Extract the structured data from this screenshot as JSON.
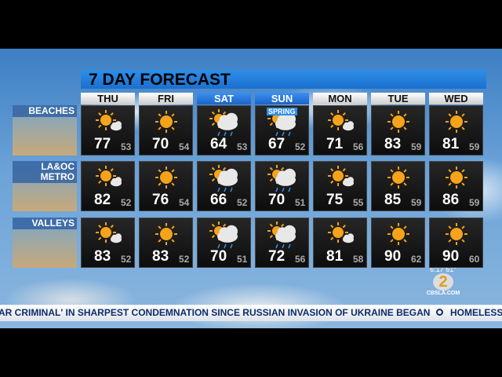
{
  "header": {
    "title": "7 DAY FORECAST"
  },
  "days": [
    "THU",
    "FRI",
    "SAT",
    "SUN",
    "MON",
    "TUE",
    "WED"
  ],
  "rows": [
    {
      "region": "BEACHES",
      "highs": [
        77,
        70,
        64,
        67,
        71,
        83,
        81
      ],
      "lows": [
        53,
        54,
        53,
        52,
        56,
        59,
        59
      ]
    },
    {
      "region": "LA&OC METRO",
      "highs": [
        82,
        76,
        66,
        70,
        75,
        85,
        86
      ],
      "lows": [
        52,
        54,
        52,
        51,
        55,
        59,
        59
      ]
    },
    {
      "region": "VALLEYS",
      "highs": [
        83,
        83,
        70,
        72,
        81,
        90,
        90
      ],
      "lows": [
        52,
        52,
        51,
        56,
        58,
        62,
        60
      ]
    }
  ],
  "badge": "SPRING",
  "ticker": {
    "text": "AR CRIMINAL' IN SHARPEST CONDEMNATION SINCE RUSSIAN INVASION OF UKRAINE BEGAN",
    "next": "HOMELESS"
  },
  "logo": {
    "time": "6:17",
    "temp": "61°",
    "network": "2",
    "site": "CBSLA.COM"
  }
}
